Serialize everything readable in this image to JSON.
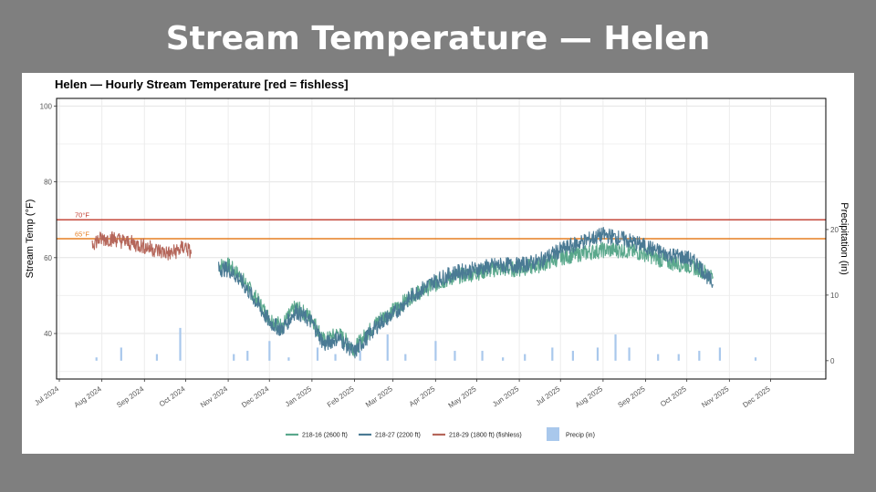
{
  "slide": {
    "title": "Stream Temperature — Helen"
  },
  "chart_data": {
    "type": "line",
    "title": "Helen — Hourly Stream Temperature  [red = fishless]",
    "ylabel": "Stream Temp (°F)",
    "y2label": "Precipitation (in)",
    "xlabel": "",
    "ylim": [
      28,
      102
    ],
    "y2lim": [
      -2.8,
      40
    ],
    "y_ticks": [
      40,
      60,
      80,
      100
    ],
    "y2_ticks": [
      0,
      10,
      20
    ],
    "x_ticks": [
      "Jul 2024",
      "Aug 2024",
      "Sep 2024",
      "Oct 2024",
      "Nov 2024",
      "Dec 2024",
      "Jan 2025",
      "Feb 2025",
      "Mar 2025",
      "Apr 2025",
      "May 2025",
      "Jun 2025",
      "Jul 2025",
      "Aug 2025",
      "Sep 2025",
      "Oct 2025",
      "Nov 2025",
      "Dec 2025"
    ],
    "grid": true,
    "legend_position": "bottom",
    "reference_lines": [
      {
        "label": "70°F",
        "value": 70,
        "color": "#c0392b"
      },
      {
        "label": "65°F",
        "value": 65,
        "color": "#e67e22"
      }
    ],
    "series": [
      {
        "name": "218-16 (2600 ft)",
        "color": "#5aa88c",
        "x": [
          "2024-10-25",
          "2024-11-01",
          "2024-11-10",
          "2024-11-20",
          "2024-12-01",
          "2024-12-10",
          "2024-12-20",
          "2025-01-01",
          "2025-01-10",
          "2025-01-20",
          "2025-02-01",
          "2025-02-10",
          "2025-02-20",
          "2025-03-01",
          "2025-03-15",
          "2025-04-01",
          "2025-04-15",
          "2025-05-01",
          "2025-05-15",
          "2025-06-01",
          "2025-06-15",
          "2025-07-01",
          "2025-07-15",
          "2025-08-01",
          "2025-08-15",
          "2025-09-01",
          "2025-09-15",
          "2025-10-01",
          "2025-10-10",
          "2025-10-20"
        ],
        "values": [
          58,
          58,
          55,
          50,
          44,
          42,
          47,
          44,
          38,
          40,
          36,
          40,
          44,
          46,
          50,
          53,
          55,
          56,
          57,
          57,
          58,
          60,
          61,
          62,
          62,
          61,
          59,
          58,
          57,
          55
        ]
      },
      {
        "name": "218-27 (2200 ft)",
        "color": "#4a7a94",
        "x": [
          "2024-10-25",
          "2024-11-01",
          "2024-11-10",
          "2024-11-20",
          "2024-12-01",
          "2024-12-10",
          "2024-12-20",
          "2025-01-01",
          "2025-01-10",
          "2025-01-20",
          "2025-02-01",
          "2025-02-10",
          "2025-02-20",
          "2025-03-01",
          "2025-03-15",
          "2025-04-01",
          "2025-04-15",
          "2025-05-01",
          "2025-05-15",
          "2025-06-01",
          "2025-06-15",
          "2025-07-01",
          "2025-07-15",
          "2025-08-01",
          "2025-08-15",
          "2025-09-01",
          "2025-09-15",
          "2025-10-01",
          "2025-10-10",
          "2025-10-20"
        ],
        "values": [
          57,
          57,
          54,
          49,
          43,
          41,
          46,
          43,
          37,
          39,
          35,
          39,
          43,
          45,
          50,
          54,
          56,
          57,
          58,
          58,
          59,
          62,
          64,
          66,
          65,
          63,
          61,
          60,
          58,
          53
        ]
      },
      {
        "name": "218-29 (1800 ft) (fishless)",
        "color": "#b5665a",
        "x": [
          "2024-07-25",
          "2024-08-01",
          "2024-08-10",
          "2024-08-20",
          "2024-09-01",
          "2024-09-10",
          "2024-09-20",
          "2024-10-01",
          "2024-10-05"
        ],
        "values": [
          64,
          65,
          65,
          64,
          63,
          62,
          61,
          63,
          61
        ]
      }
    ],
    "precip": {
      "name": "Precip (in)",
      "color": "#a9c8ec",
      "x": [
        "2024-07-28",
        "2024-08-15",
        "2024-09-10",
        "2024-09-27",
        "2024-11-05",
        "2024-11-15",
        "2024-12-01",
        "2024-12-15",
        "2025-01-05",
        "2025-01-18",
        "2025-02-05",
        "2025-02-25",
        "2025-03-10",
        "2025-04-01",
        "2025-04-15",
        "2025-05-05",
        "2025-05-20",
        "2025-06-05",
        "2025-06-25",
        "2025-07-10",
        "2025-07-28",
        "2025-08-10",
        "2025-08-20",
        "2025-09-10",
        "2025-09-25",
        "2025-10-10",
        "2025-10-25",
        "2025-11-20"
      ],
      "values": [
        0.5,
        2,
        1,
        5,
        1,
        1.5,
        3,
        0.5,
        2,
        1,
        1.5,
        4,
        1,
        3,
        1.5,
        1.5,
        0.5,
        1,
        2,
        1.5,
        2,
        4,
        2,
        1,
        1,
        1.5,
        2,
        0.5
      ]
    }
  }
}
